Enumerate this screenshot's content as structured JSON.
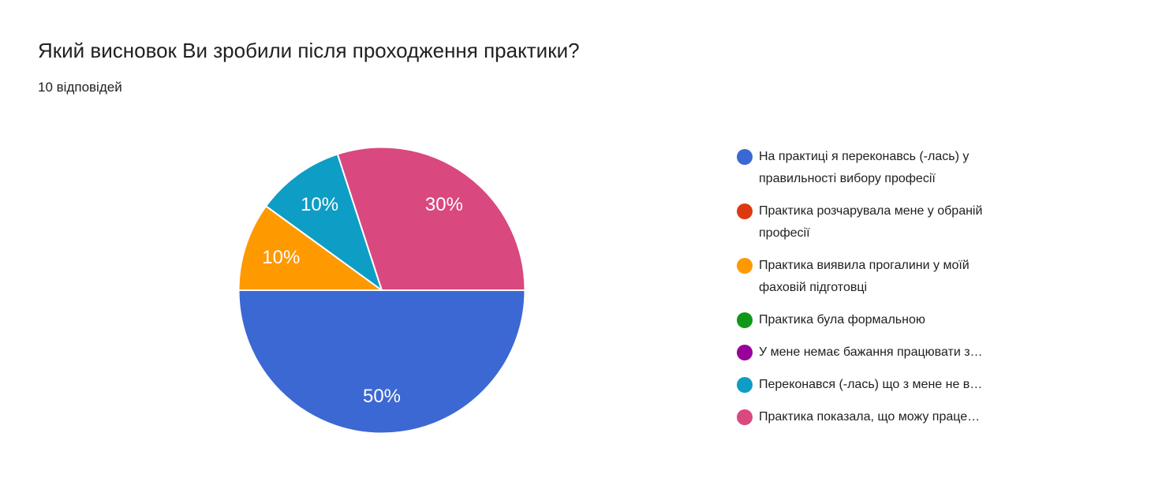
{
  "header": {
    "title": "Який висновок Ви зробили після проходження практики?",
    "responses_count": "10 відповідей"
  },
  "chart_data": {
    "type": "pie",
    "title": "Який висновок Ви зробили після проходження практики?",
    "subtitle": "10 відповідей",
    "legend_position": "right",
    "start_angle": "east",
    "direction": "clockwise",
    "slice_border_color": "#ffffff",
    "slice_label_color": "#ffffff",
    "series": [
      {
        "label": "На практиці я переконавсь (-лась) у правильності вибору професії",
        "legend_lines": [
          "На практиці я переконавсь (-лась) у",
          "правильності вибору професії"
        ],
        "percent": 50,
        "slice_label": "50%",
        "color": "#3C68D3"
      },
      {
        "label": "Практика розчарувала мене у обраній професії",
        "legend_lines": [
          "Практика розчарувала мене у обраній",
          "професії"
        ],
        "percent": 0,
        "slice_label": "",
        "color": "#DC3912"
      },
      {
        "label": "Практика виявила прогалини у моїй фаховій підготовці",
        "legend_lines": [
          "Практика виявила прогалини у моїй",
          "фаховій підготовці"
        ],
        "percent": 10,
        "slice_label": "10%",
        "color": "#FF9900"
      },
      {
        "label": "Практика була формальною",
        "legend_lines": [
          "Практика була формальною"
        ],
        "percent": 0,
        "slice_label": "",
        "color": "#109618"
      },
      {
        "label": "У мене немає бажання працювати з…",
        "legend_lines": [
          "У мене немає бажання працювати з…"
        ],
        "percent": 0,
        "slice_label": "",
        "color": "#990099"
      },
      {
        "label": "Переконався (-лась) що з мене не в…",
        "legend_lines": [
          "Переконався (-лась) що з мене не в…"
        ],
        "percent": 10,
        "slice_label": "10%",
        "color": "#0E9DC5"
      },
      {
        "label": "Практика показала, що можу праце…",
        "legend_lines": [
          "Практика показала, що можу праце…"
        ],
        "percent": 30,
        "slice_label": "30%",
        "color": "#D9487E"
      }
    ]
  }
}
